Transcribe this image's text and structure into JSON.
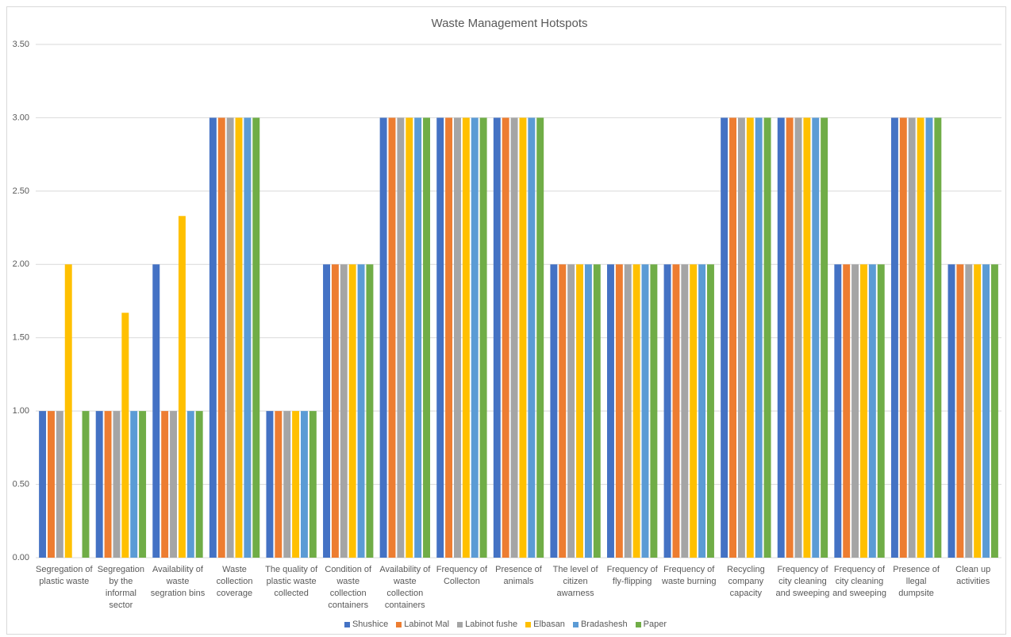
{
  "chart_data": {
    "type": "bar",
    "title": "Waste Management Hotspots",
    "categories": [
      "Segregation of plastic waste",
      "Segregation by the informal sector",
      "Availability of waste segration bins",
      "Waste collection coverage",
      "The quality of plastic waste collected",
      "Condition of waste collection containers",
      "Availability of waste collection containers",
      "Frequency of Collecton",
      "Presence of animals",
      "The level of citizen awarness",
      "Frequency of fly-flipping",
      "Frequency of waste burning",
      "Recycling company capacity",
      "Frequency of city cleaning and sweeping",
      "Frequency of city cleaning and sweeping",
      "Presence of llegal dumpsite",
      "Clean up activities"
    ],
    "series": [
      {
        "name": "Shushice",
        "color": "#4472c4",
        "values": [
          1,
          1,
          2,
          3,
          1,
          2,
          3,
          3,
          3,
          2,
          2,
          2,
          3,
          3,
          2,
          3,
          2
        ]
      },
      {
        "name": "Labinot Mal",
        "color": "#ed7d31",
        "values": [
          1,
          1,
          1,
          3,
          1,
          2,
          3,
          3,
          3,
          2,
          2,
          2,
          3,
          3,
          2,
          3,
          2
        ]
      },
      {
        "name": "Labinot fushe",
        "color": "#a5a5a5",
        "values": [
          1,
          1,
          1,
          3,
          1,
          2,
          3,
          3,
          3,
          2,
          2,
          2,
          3,
          3,
          2,
          3,
          2
        ]
      },
      {
        "name": "Elbasan",
        "color": "#ffc000",
        "values": [
          2,
          1.67,
          2.33,
          3,
          1,
          2,
          3,
          3,
          3,
          2,
          2,
          2,
          3,
          3,
          2,
          3,
          2
        ]
      },
      {
        "name": "Bradashesh",
        "color": "#5b9bd5",
        "values": [
          0,
          1,
          1,
          3,
          1,
          2,
          3,
          3,
          3,
          2,
          2,
          2,
          3,
          3,
          2,
          3,
          2
        ]
      },
      {
        "name": "Paper",
        "color": "#70ad47",
        "values": [
          1,
          1,
          1,
          3,
          1,
          2,
          3,
          3,
          3,
          2,
          2,
          2,
          3,
          3,
          2,
          3,
          2
        ]
      }
    ],
    "ylim": [
      0,
      3.5
    ],
    "yticks": [
      {
        "value": 0,
        "label": "0.00"
      },
      {
        "value": 0.5,
        "label": "0.50"
      },
      {
        "value": 1,
        "label": "1.00"
      },
      {
        "value": 1.5,
        "label": "1.50"
      },
      {
        "value": 2,
        "label": "2.00"
      },
      {
        "value": 2.5,
        "label": "2.50"
      },
      {
        "value": 3,
        "label": "3.00"
      },
      {
        "value": 3.5,
        "label": "3.50"
      }
    ],
    "grid": true,
    "legend": "bottom"
  }
}
